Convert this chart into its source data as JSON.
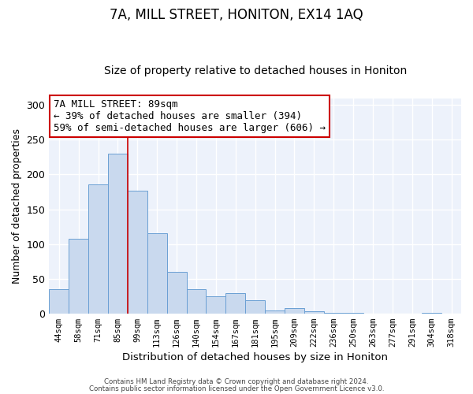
{
  "title": "7A, MILL STREET, HONITON, EX14 1AQ",
  "subtitle": "Size of property relative to detached houses in Honiton",
  "xlabel": "Distribution of detached houses by size in Honiton",
  "ylabel": "Number of detached properties",
  "categories": [
    "44sqm",
    "58sqm",
    "71sqm",
    "85sqm",
    "99sqm",
    "113sqm",
    "126sqm",
    "140sqm",
    "154sqm",
    "167sqm",
    "181sqm",
    "195sqm",
    "209sqm",
    "222sqm",
    "236sqm",
    "250sqm",
    "263sqm",
    "277sqm",
    "291sqm",
    "304sqm",
    "318sqm"
  ],
  "values": [
    35,
    107,
    186,
    230,
    177,
    115,
    60,
    35,
    25,
    29,
    19,
    4,
    8,
    3,
    1,
    1,
    0,
    0,
    0,
    1,
    0
  ],
  "bar_color": "#c9d9ee",
  "bar_edge_color": "#6a9fd4",
  "vline_color": "#cc0000",
  "annotation_text": "7A MILL STREET: 89sqm\n← 39% of detached houses are smaller (394)\n59% of semi-detached houses are larger (606) →",
  "annotation_box_color": "#ffffff",
  "annotation_box_edge_color": "#cc0000",
  "ylim": [
    0,
    310
  ],
  "yticks": [
    0,
    50,
    100,
    150,
    200,
    250,
    300
  ],
  "footer1": "Contains HM Land Registry data © Crown copyright and database right 2024.",
  "footer2": "Contains public sector information licensed under the Open Government Licence v3.0.",
  "plot_bg_color": "#edf2fb",
  "fig_bg_color": "#ffffff",
  "title_fontsize": 12,
  "subtitle_fontsize": 10,
  "annotation_fontsize": 9
}
